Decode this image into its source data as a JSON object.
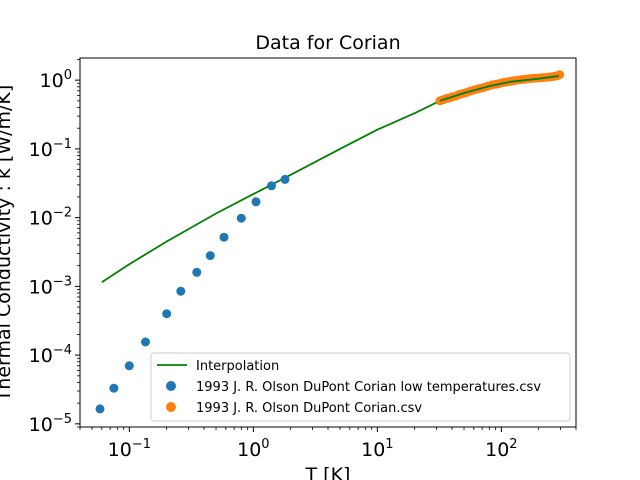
{
  "chart_data": {
    "type": "scatter",
    "title": "Data for Corian",
    "xlabel": "T [K]",
    "ylabel": "Thermal Conductivity : k [W/m/K]",
    "xscale": "log",
    "yscale": "log",
    "xlim": [
      0.04,
      400
    ],
    "ylim": [
      9e-06,
      2.1
    ],
    "xticks": [
      {
        "value": 0.1,
        "label": "10",
        "exp": "−1"
      },
      {
        "value": 1,
        "label": "10",
        "exp": "0"
      },
      {
        "value": 10,
        "label": "10",
        "exp": "1"
      },
      {
        "value": 100,
        "label": "10",
        "exp": "2"
      }
    ],
    "yticks": [
      {
        "value": 1e-05,
        "label": "10",
        "exp": "−5"
      },
      {
        "value": 0.0001,
        "label": "10",
        "exp": "−4"
      },
      {
        "value": 0.001,
        "label": "10",
        "exp": "−3"
      },
      {
        "value": 0.01,
        "label": "10",
        "exp": "−2"
      },
      {
        "value": 0.1,
        "label": "10",
        "exp": "−1"
      },
      {
        "value": 1,
        "label": "10",
        "exp": "0"
      }
    ],
    "grid": false,
    "legend_position": "lower-right",
    "series": [
      {
        "name": "Interpolation",
        "kind": "line",
        "color": "#008000",
        "x": [
          0.06,
          0.1,
          0.2,
          0.5,
          1,
          2,
          5,
          10,
          20,
          32,
          50,
          80,
          120,
          200,
          290
        ],
        "y": [
          0.00115,
          0.0021,
          0.0045,
          0.0115,
          0.022,
          0.042,
          0.1,
          0.19,
          0.33,
          0.5,
          0.65,
          0.82,
          0.95,
          1.05,
          1.15
        ]
      },
      {
        "name": "1993 J. R. Olson DuPont Corian low temperatures.csv",
        "kind": "scatter",
        "color": "#1f77b4",
        "x": [
          0.058,
          0.075,
          0.1,
          0.135,
          0.2,
          0.26,
          0.35,
          0.45,
          0.58,
          0.8,
          1.05,
          1.4,
          1.8
        ],
        "y": [
          1.65e-05,
          3.3e-05,
          7e-05,
          0.000155,
          0.0004,
          0.00085,
          0.0016,
          0.0028,
          0.0052,
          0.0098,
          0.017,
          0.029,
          0.036
        ]
      },
      {
        "name": "1993 J. R. Olson DuPont Corian.csv",
        "kind": "scatter",
        "color": "#ff7f0e",
        "x": [
          32,
          34,
          36,
          38,
          40,
          43,
          46,
          49,
          52,
          56,
          60,
          64,
          68,
          73,
          78,
          84,
          90,
          96,
          103,
          110,
          118,
          126,
          135,
          145,
          155,
          166,
          178,
          190,
          203,
          217,
          232,
          248,
          265,
          282,
          295
        ],
        "y": [
          0.5,
          0.52,
          0.54,
          0.55,
          0.57,
          0.59,
          0.62,
          0.64,
          0.66,
          0.69,
          0.72,
          0.74,
          0.76,
          0.79,
          0.82,
          0.85,
          0.87,
          0.89,
          0.92,
          0.94,
          0.96,
          0.98,
          1.0,
          1.02,
          1.03,
          1.05,
          1.06,
          1.07,
          1.08,
          1.09,
          1.1,
          1.11,
          1.13,
          1.16,
          1.2
        ]
      }
    ]
  }
}
